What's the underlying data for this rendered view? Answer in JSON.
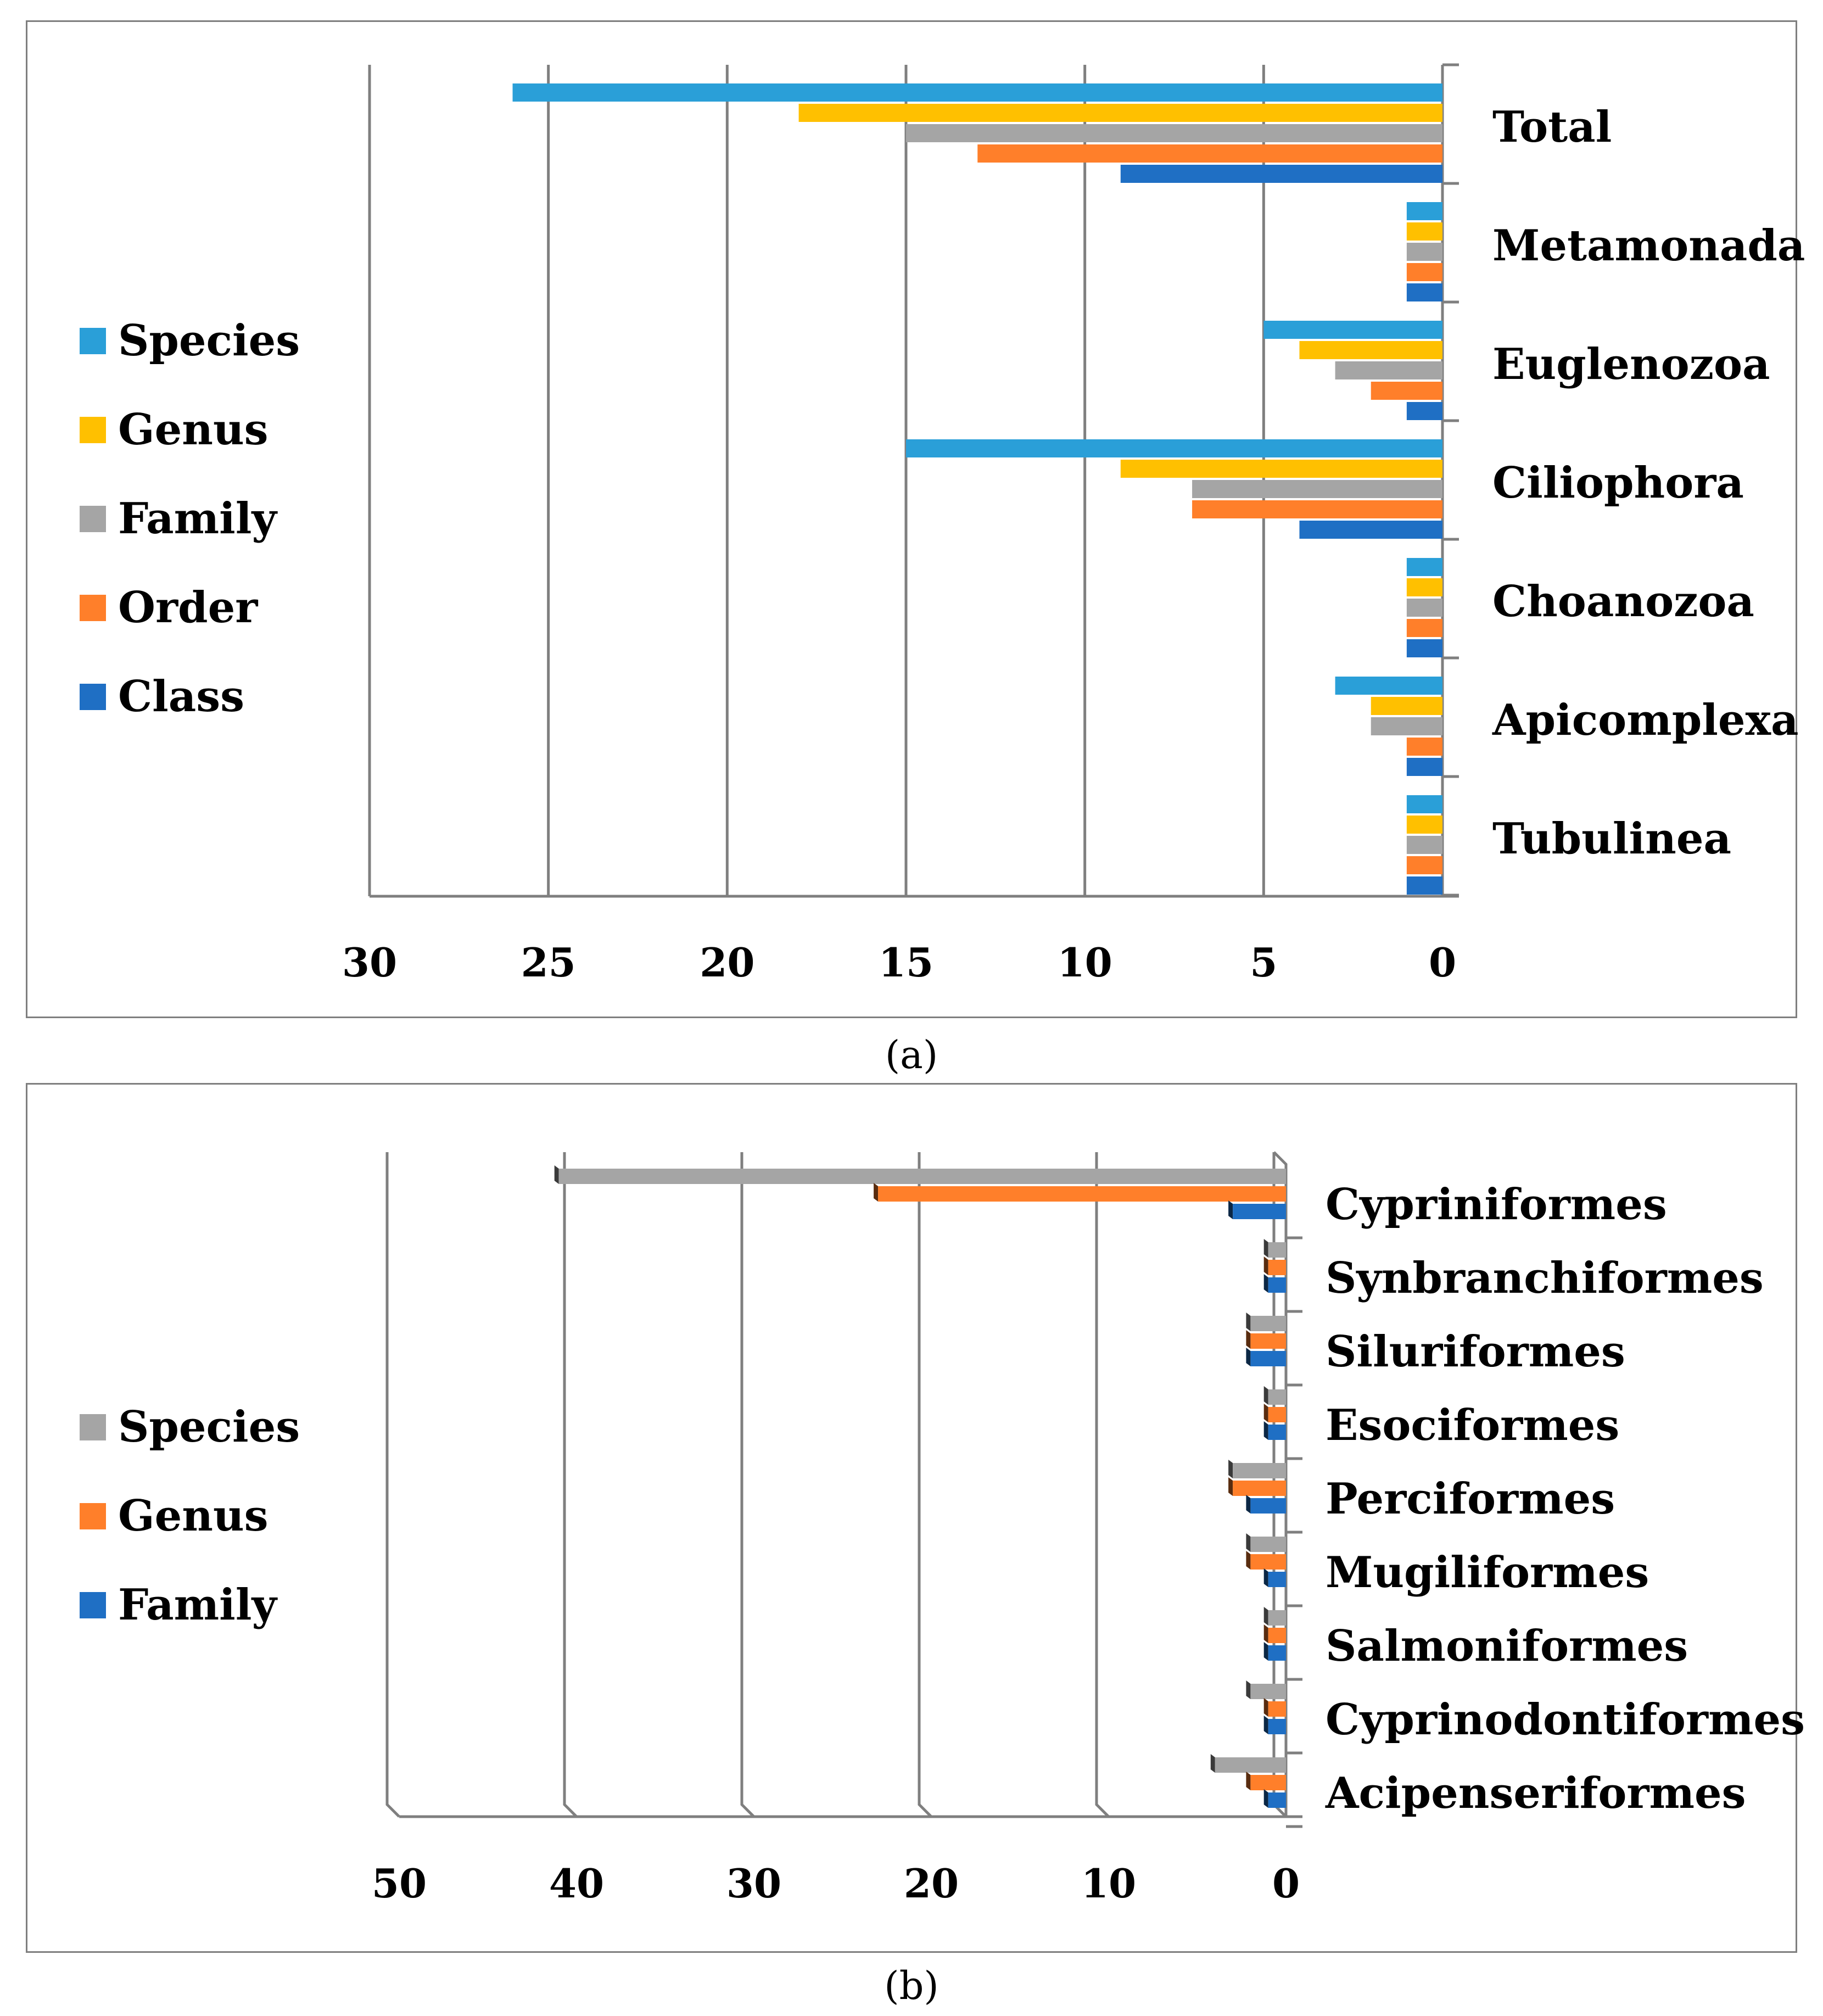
{
  "chart_data": [
    {
      "type": "bar",
      "orientation": "horizontal",
      "caption": "(a)",
      "categories": [
        "Total",
        "Metamonada",
        "Euglenozoa",
        "Ciliophora",
        "Choanozoa",
        "Apicomplexa",
        "Tubulinea"
      ],
      "series": [
        {
          "name": "Species",
          "color": "#2a9fd8",
          "values": [
            26,
            1,
            5,
            15,
            1,
            3,
            1
          ]
        },
        {
          "name": "Genus",
          "color": "#ffc000",
          "values": [
            18,
            1,
            4,
            9,
            1,
            2,
            1
          ]
        },
        {
          "name": "Family",
          "color": "#a5a5a5",
          "values": [
            15,
            1,
            3,
            7,
            1,
            2,
            1
          ]
        },
        {
          "name": "Order",
          "color": "#ff7f2a",
          "values": [
            13,
            1,
            2,
            7,
            1,
            1,
            1
          ]
        },
        {
          "name": "Class",
          "color": "#1f6fc4",
          "values": [
            9,
            1,
            1,
            4,
            1,
            1,
            1
          ]
        }
      ],
      "xlim": [
        0,
        30
      ],
      "x_reversed": true,
      "x_ticks": [
        "30",
        "25",
        "20",
        "15",
        "10",
        "5",
        "0"
      ],
      "grid": true,
      "legend_position": "left"
    },
    {
      "type": "bar",
      "orientation": "horizontal",
      "style": "3d",
      "caption": "(b)",
      "categories": [
        "Cypriniformes",
        "Synbranchiformes",
        "Siluriformes",
        "Esociformes",
        "Perciformes",
        "Mugiliformes",
        "Salmoniformes",
        "Cyprinodontiformes",
        "Acipenseriformes"
      ],
      "series": [
        {
          "name": "Species",
          "color": "#a5a5a5",
          "values": [
            41,
            1,
            2,
            1,
            3,
            2,
            1,
            2,
            4
          ]
        },
        {
          "name": "Genus",
          "color": "#ff7f2a",
          "values": [
            23,
            1,
            2,
            1,
            3,
            2,
            1,
            1,
            2
          ]
        },
        {
          "name": "Family",
          "color": "#1f6fc4",
          "values": [
            3,
            1,
            2,
            1,
            2,
            1,
            1,
            1,
            1
          ]
        }
      ],
      "xlim": [
        0,
        50
      ],
      "x_reversed": true,
      "x_ticks": [
        "50",
        "40",
        "30",
        "20",
        "10",
        "0"
      ],
      "grid": true,
      "legend_position": "left"
    }
  ]
}
